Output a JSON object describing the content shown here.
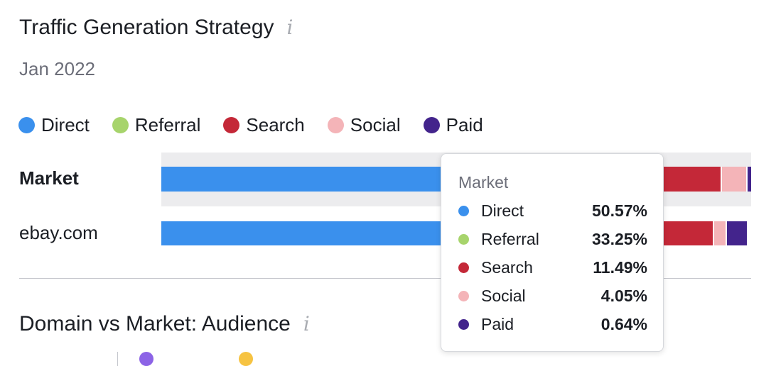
{
  "header": {
    "title": "Traffic Generation Strategy",
    "info_glyph": "i",
    "date": "Jan 2022"
  },
  "chart_data": {
    "type": "bar",
    "stacked": true,
    "orientation": "horizontal",
    "unit": "%",
    "legend_position": "top-left",
    "categories": [
      "Market",
      "ebay.com"
    ],
    "series": [
      {
        "name": "Direct",
        "color": "#3a90ed",
        "values": [
          50.57,
          50.0
        ]
      },
      {
        "name": "Referral",
        "color": "#a7d46c",
        "values": [
          33.25,
          32.0
        ]
      },
      {
        "name": "Search",
        "color": "#c42838",
        "values": [
          11.49,
          11.0
        ]
      },
      {
        "name": "Social",
        "color": "#f4b4b8",
        "values": [
          4.05,
          2.0
        ]
      },
      {
        "name": "Paid",
        "color": "#43248c",
        "values": [
          0.64,
          3.3
        ]
      }
    ],
    "xlim": [
      0,
      100
    ]
  },
  "tooltip": {
    "title": "Market",
    "rows": [
      {
        "name": "Direct",
        "value": "50.57%",
        "color": "#3a90ed"
      },
      {
        "name": "Referral",
        "value": "33.25%",
        "color": "#a7d46c"
      },
      {
        "name": "Search",
        "value": "11.49%",
        "color": "#c42838"
      },
      {
        "name": "Social",
        "value": "4.05%",
        "color": "#f4b4b8"
      },
      {
        "name": "Paid",
        "value": "0.64%",
        "color": "#43248c"
      }
    ]
  },
  "section2": {
    "title": "Domain vs Market: Audience",
    "info_glyph": "i",
    "peek_colors": [
      "#8c63e6",
      "#f6c342"
    ]
  },
  "icons": [
    "info-icon"
  ]
}
